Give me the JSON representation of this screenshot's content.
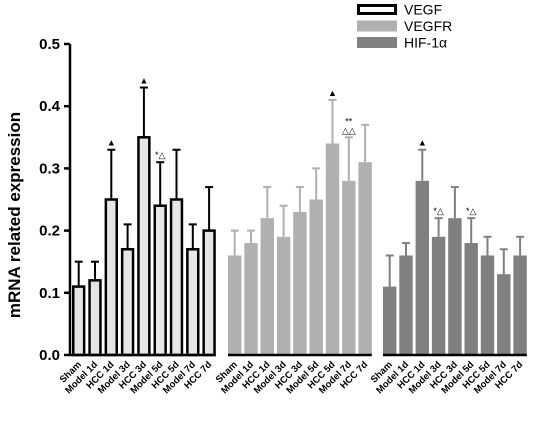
{
  "chart_data": {
    "type": "bar",
    "ylabel": "mRNA related expression",
    "xlabel": "",
    "ylim": [
      0,
      0.5
    ],
    "yticks": [
      "0.0",
      "0.1",
      "0.2",
      "0.3",
      "0.4",
      "0.5"
    ],
    "categories": [
      "Sham",
      "Model 1d",
      "HCC 1d",
      "Model 3d",
      "HCC 3d",
      "Model 5d",
      "HCC 5d",
      "Model 7d",
      "HCC 7d"
    ],
    "legend_position": "top-right",
    "series": [
      {
        "name": "VEGF",
        "fill": "#e6e6e6",
        "stroke": "#000000",
        "values": [
          0.11,
          0.12,
          0.25,
          0.17,
          0.35,
          0.24,
          0.25,
          0.17,
          0.2
        ],
        "errors": [
          0.04,
          0.03,
          0.08,
          0.04,
          0.08,
          0.07,
          0.08,
          0.04,
          0.07
        ],
        "annotations": [
          "",
          "",
          "▲",
          "",
          "▲",
          "*△",
          "",
          "",
          ""
        ]
      },
      {
        "name": "VEGFR",
        "fill": "#b0b0b0",
        "stroke": "#b0b0b0",
        "values": [
          0.16,
          0.18,
          0.22,
          0.19,
          0.23,
          0.25,
          0.34,
          0.28,
          0.31
        ],
        "errors": [
          0.04,
          0.02,
          0.05,
          0.05,
          0.04,
          0.05,
          0.07,
          0.07,
          0.06
        ],
        "annotations": [
          "",
          "",
          "",
          "",
          "",
          "",
          "▲",
          "**\n△△",
          ""
        ]
      },
      {
        "name": "HIF-1α",
        "fill": "#808080",
        "stroke": "#808080",
        "values": [
          0.11,
          0.16,
          0.28,
          0.19,
          0.22,
          0.18,
          0.16,
          0.13,
          0.16
        ],
        "errors": [
          0.05,
          0.02,
          0.05,
          0.03,
          0.05,
          0.04,
          0.03,
          0.04,
          0.03
        ],
        "annotations": [
          "",
          "",
          "▲",
          "*△",
          "",
          "*△",
          "",
          "",
          ""
        ]
      }
    ]
  }
}
